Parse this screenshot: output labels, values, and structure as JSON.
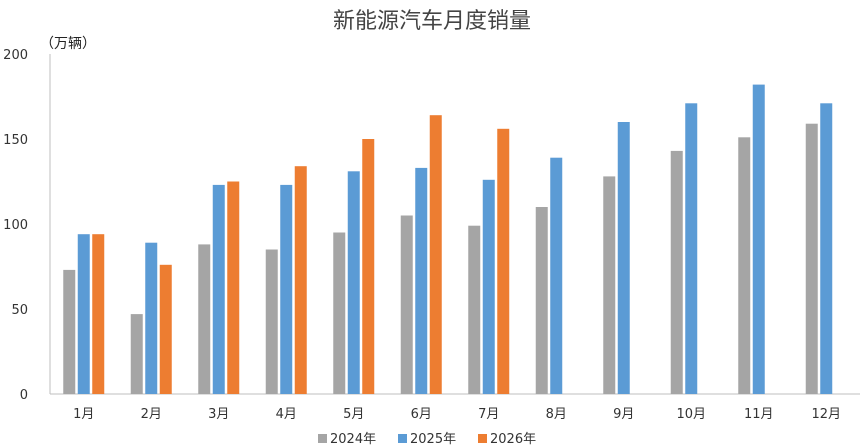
{
  "chart_data": {
    "type": "bar",
    "title": "新能源汽车月度销量",
    "unit_label": "（万辆）",
    "xlabel": "",
    "ylabel": "",
    "ylim": [
      0,
      200
    ],
    "yticks": [
      0,
      50,
      100,
      150,
      200
    ],
    "grid": false,
    "legend_position": "bottom",
    "categories": [
      "1月",
      "2月",
      "3月",
      "4月",
      "5月",
      "6月",
      "7月",
      "8月",
      "9月",
      "10月",
      "11月",
      "12月"
    ],
    "series": [
      {
        "name": "2024年",
        "color": "#a5a5a5",
        "values": [
          73,
          47,
          88,
          85,
          95,
          105,
          99,
          110,
          128,
          143,
          151,
          159
        ]
      },
      {
        "name": "2025年",
        "color": "#5b9bd5",
        "values": [
          94,
          89,
          123,
          123,
          131,
          133,
          126,
          139,
          160,
          171,
          182,
          171
        ]
      },
      {
        "name": "2026年",
        "color": "#ed7d31",
        "values": [
          94,
          76,
          125,
          134,
          150,
          164,
          156,
          null,
          null,
          null,
          null,
          null
        ]
      }
    ]
  }
}
